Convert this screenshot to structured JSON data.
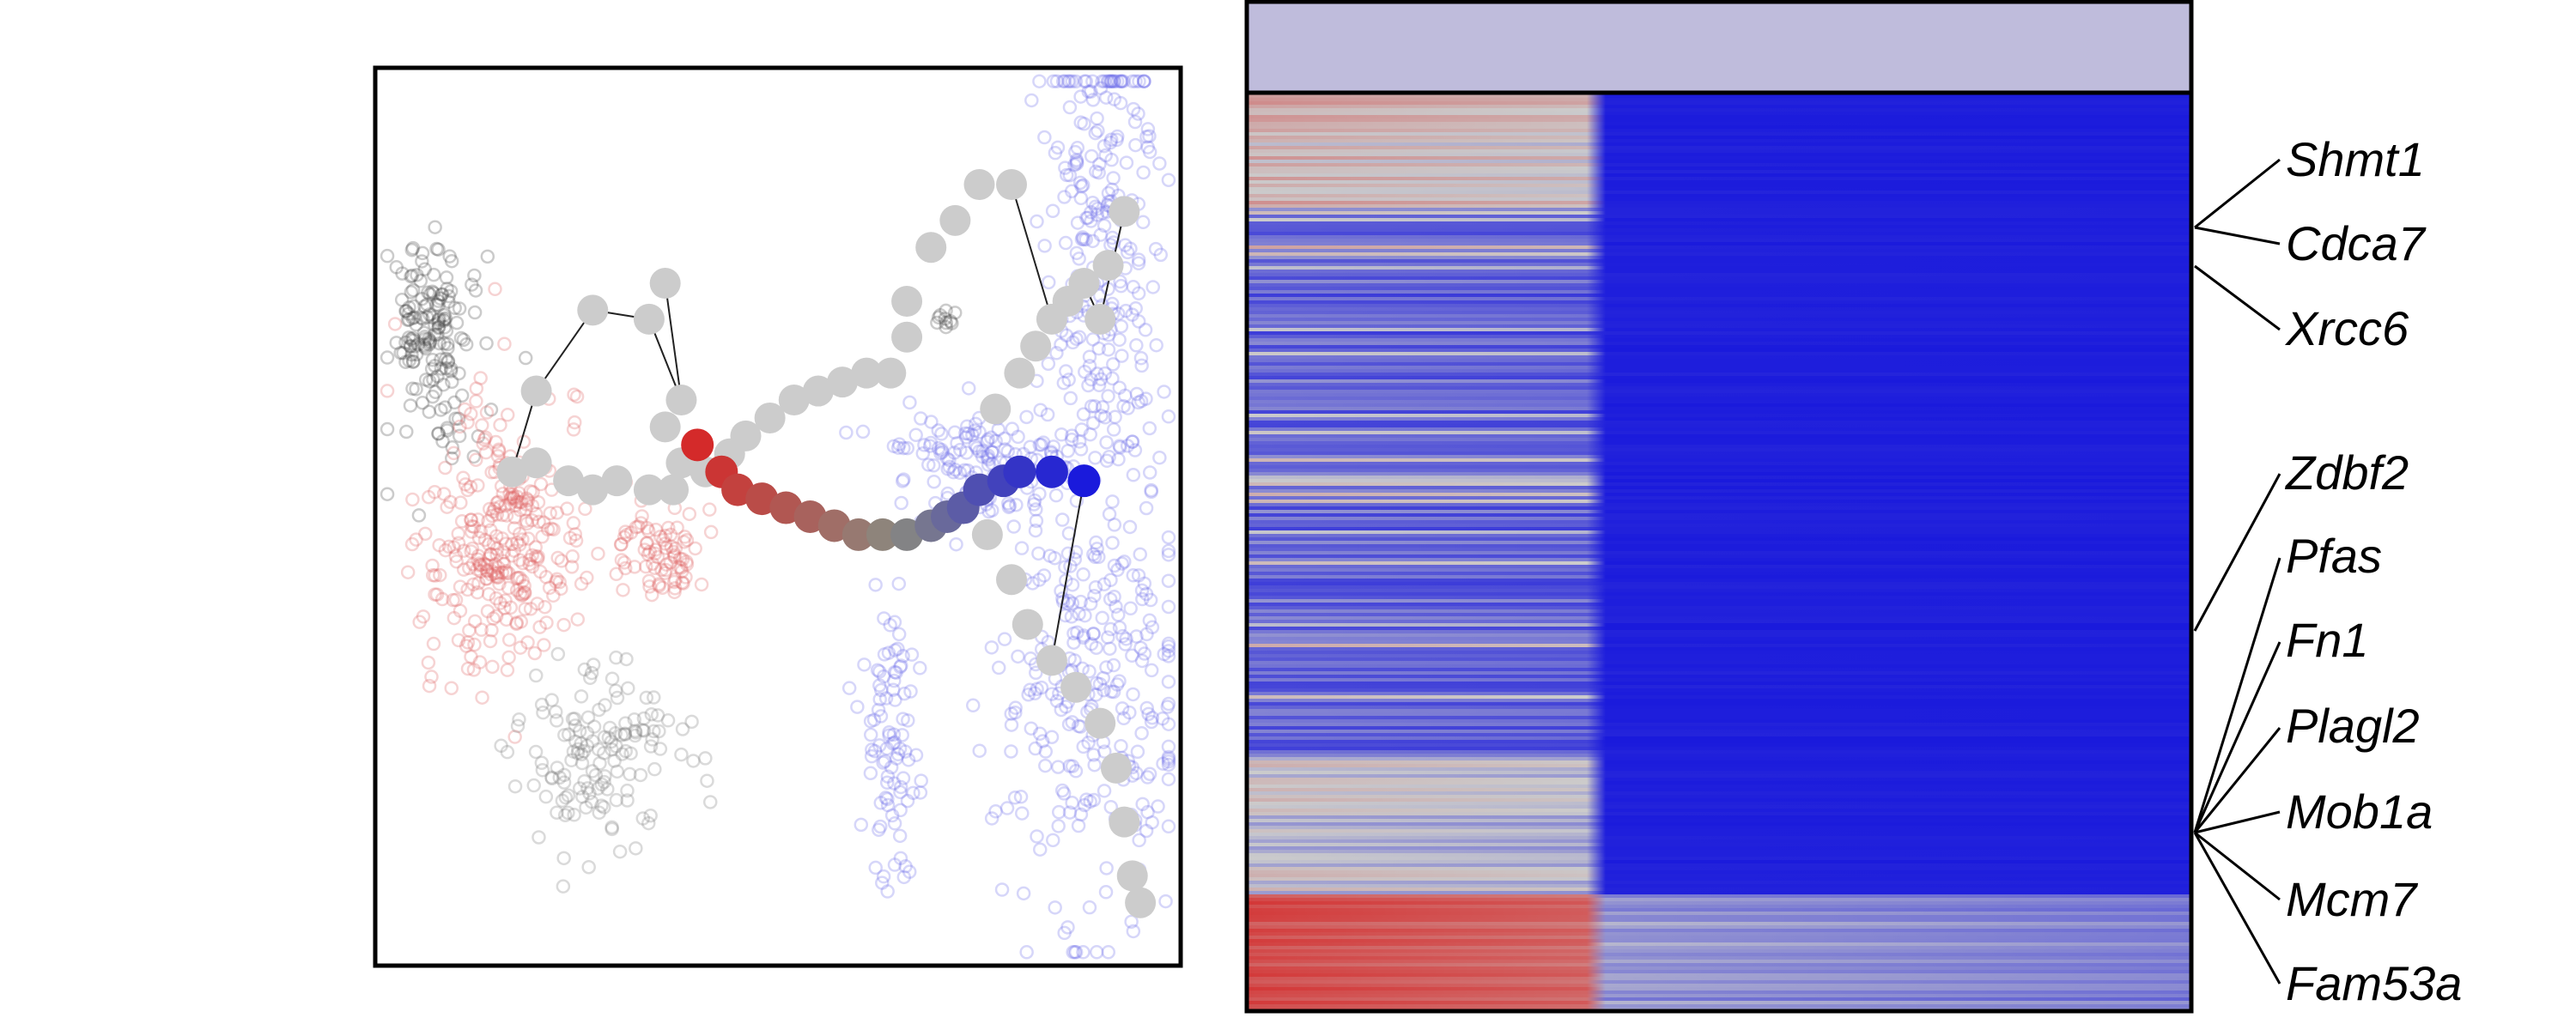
{
  "chart_data": [
    {
      "type": "scatter",
      "title": "",
      "xlabel": "",
      "ylabel": "",
      "axes_visible": false,
      "colors": {
        "start": "#d42a2a",
        "mid": "#8a8a80",
        "end": "#1a1adc",
        "background_red": "#e06060",
        "background_blue": "#6a6ae8",
        "background_grey": "#7a7a7a",
        "background_dark": "#444444",
        "node_grey": "#cccccc",
        "edge": "#222222"
      },
      "highlighted_path": {
        "color_scale": [
          "#d42a2a",
          "#8a8a80",
          "#1a1adc"
        ],
        "points": [
          [
            0.4,
            0.42
          ],
          [
            0.43,
            0.45
          ],
          [
            0.45,
            0.47
          ],
          [
            0.48,
            0.48
          ],
          [
            0.51,
            0.49
          ],
          [
            0.54,
            0.5
          ],
          [
            0.57,
            0.51
          ],
          [
            0.6,
            0.52
          ],
          [
            0.63,
            0.52
          ],
          [
            0.66,
            0.52
          ],
          [
            0.69,
            0.51
          ],
          [
            0.71,
            0.5
          ],
          [
            0.73,
            0.49
          ],
          [
            0.75,
            0.47
          ],
          [
            0.78,
            0.46
          ],
          [
            0.8,
            0.45
          ],
          [
            0.84,
            0.45
          ],
          [
            0.88,
            0.46
          ]
        ]
      },
      "grey_nodes": [
        [
          0.17,
          0.45
        ],
        [
          0.2,
          0.44
        ],
        [
          0.24,
          0.46
        ],
        [
          0.27,
          0.47
        ],
        [
          0.3,
          0.46
        ],
        [
          0.34,
          0.47
        ],
        [
          0.37,
          0.47
        ],
        [
          0.38,
          0.44
        ],
        [
          0.36,
          0.4
        ],
        [
          0.2,
          0.36
        ],
        [
          0.27,
          0.27
        ],
        [
          0.34,
          0.28
        ],
        [
          0.36,
          0.24
        ],
        [
          0.38,
          0.37
        ],
        [
          0.41,
          0.45
        ],
        [
          0.44,
          0.43
        ],
        [
          0.46,
          0.41
        ],
        [
          0.49,
          0.39
        ],
        [
          0.52,
          0.37
        ],
        [
          0.55,
          0.36
        ],
        [
          0.58,
          0.35
        ],
        [
          0.61,
          0.34
        ],
        [
          0.64,
          0.34
        ],
        [
          0.66,
          0.3
        ],
        [
          0.66,
          0.26
        ],
        [
          0.69,
          0.2
        ],
        [
          0.72,
          0.17
        ],
        [
          0.75,
          0.13
        ],
        [
          0.79,
          0.13
        ],
        [
          0.77,
          0.38
        ],
        [
          0.8,
          0.34
        ],
        [
          0.82,
          0.31
        ],
        [
          0.84,
          0.28
        ],
        [
          0.86,
          0.26
        ],
        [
          0.88,
          0.24
        ],
        [
          0.9,
          0.28
        ],
        [
          0.91,
          0.22
        ],
        [
          0.93,
          0.16
        ],
        [
          0.76,
          0.52
        ],
        [
          0.79,
          0.57
        ],
        [
          0.81,
          0.62
        ],
        [
          0.84,
          0.66
        ],
        [
          0.87,
          0.69
        ],
        [
          0.9,
          0.73
        ],
        [
          0.92,
          0.78
        ],
        [
          0.93,
          0.84
        ],
        [
          0.94,
          0.9
        ],
        [
          0.95,
          0.93
        ]
      ],
      "edges": [
        [
          [
            0.17,
            0.45
          ],
          [
            0.2,
            0.36
          ]
        ],
        [
          [
            0.2,
            0.36
          ],
          [
            0.27,
            0.27
          ]
        ],
        [
          [
            0.27,
            0.27
          ],
          [
            0.34,
            0.28
          ]
        ],
        [
          [
            0.34,
            0.28
          ],
          [
            0.38,
            0.37
          ]
        ],
        [
          [
            0.36,
            0.24
          ],
          [
            0.38,
            0.37
          ]
        ],
        [
          [
            0.88,
            0.24
          ],
          [
            0.9,
            0.28
          ]
        ],
        [
          [
            0.9,
            0.28
          ],
          [
            0.93,
            0.16
          ]
        ],
        [
          [
            0.79,
            0.13
          ],
          [
            0.84,
            0.28
          ]
        ],
        [
          [
            0.88,
            0.46
          ],
          [
            0.84,
            0.66
          ]
        ]
      ]
    },
    {
      "type": "heatmap",
      "title": "",
      "xlabel": "",
      "ylabel": "",
      "color_scale": [
        "#1a1adc",
        "#cccccc",
        "#d42a2a"
      ],
      "header_bar_color": "#bfbcdc",
      "split_fraction": 0.37,
      "gene_labels": [
        "Shmt1",
        "Cdca7",
        "Xrcc6",
        "Zdbf2",
        "Pfas",
        "Fn1",
        "Plagl2",
        "Mob1a",
        "Mcm7",
        "Fam53a"
      ]
    }
  ]
}
